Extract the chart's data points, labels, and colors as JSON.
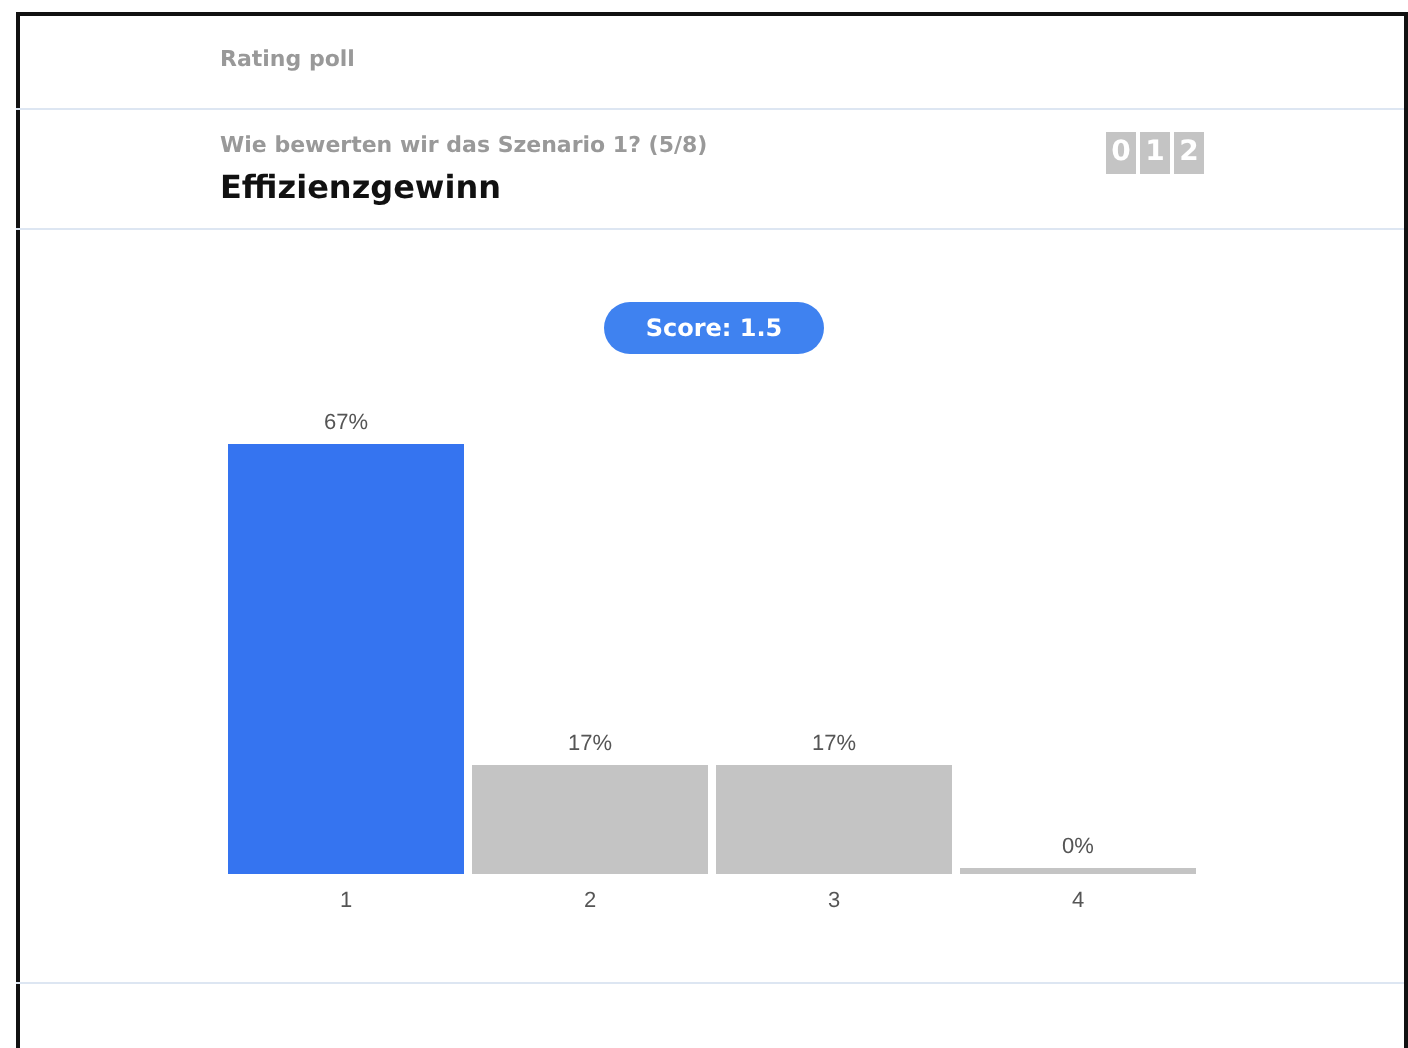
{
  "chart_data": {
    "type": "bar",
    "title": "Effizienzgewinn",
    "subtitle": "Wie bewerten wir das Szenario 1? (5/8)",
    "annotations": [
      "Rating poll",
      "Score: 1.5",
      "0",
      "1",
      "2"
    ],
    "categories": [
      "1",
      "2",
      "3",
      "4"
    ],
    "values": [
      67,
      17,
      17,
      0
    ],
    "colors": [
      "#3574f0",
      "#c4c4c4",
      "#c4c4c4",
      "#c4c4c4"
    ],
    "value_labels": [
      "67%",
      "17%",
      "17%",
      "0%"
    ],
    "grid": false
  }
}
